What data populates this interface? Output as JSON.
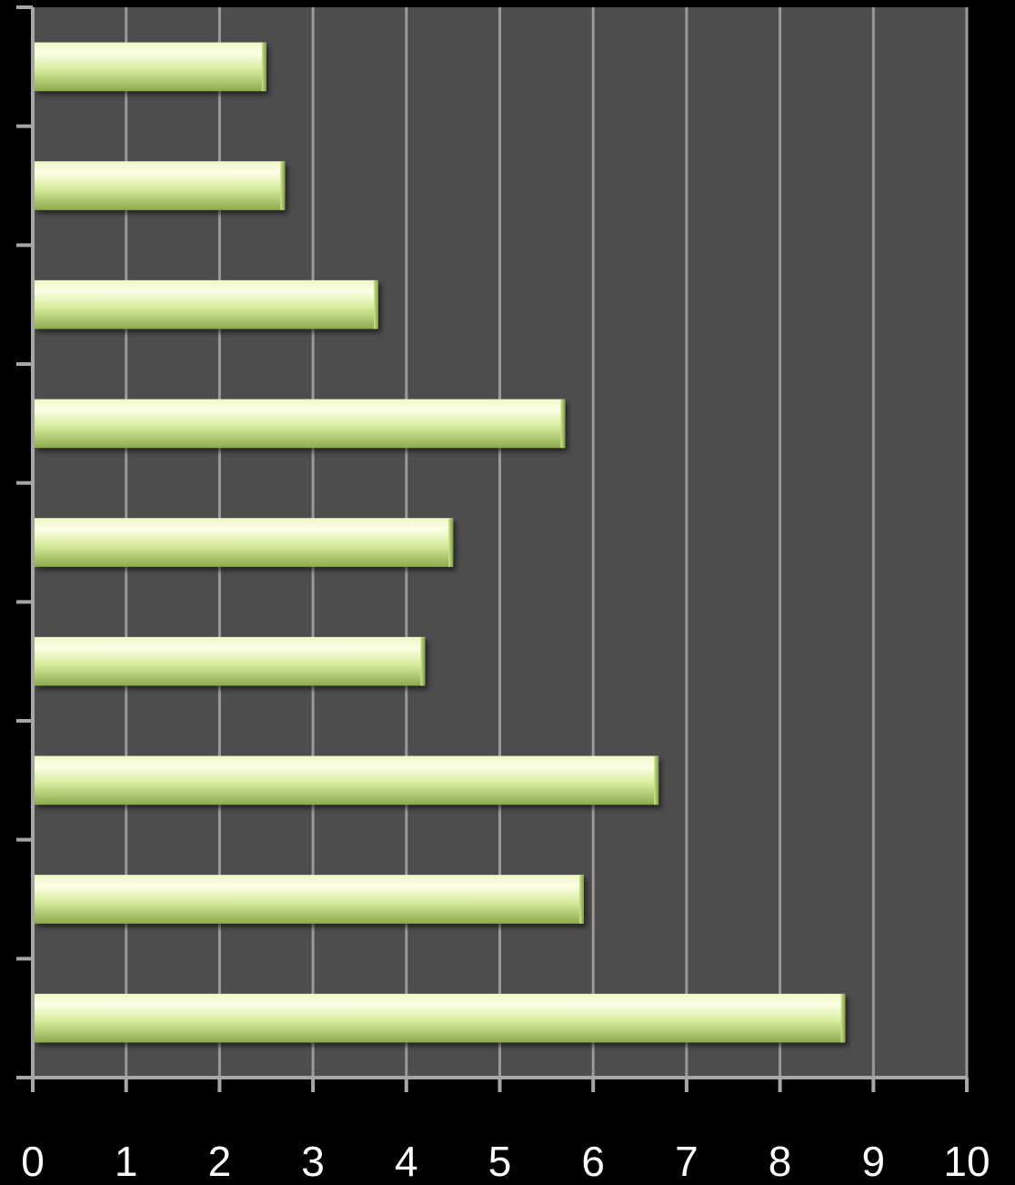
{
  "chart_data": {
    "type": "bar",
    "orientation": "horizontal",
    "title": "",
    "xlabel": "",
    "ylabel": "",
    "xlim": [
      0,
      10
    ],
    "x_ticks": [
      "0",
      "1",
      "2",
      "3",
      "4",
      "5",
      "6",
      "7",
      "8",
      "9",
      "10"
    ],
    "values_top_to_bottom": [
      2.5,
      2.7,
      3.7,
      5.7,
      4.5,
      4.2,
      6.7,
      5.9,
      8.7
    ],
    "grid": "vertical",
    "legend": "none",
    "colors": {
      "background": "#000000",
      "plot_area": "#4d4d4d",
      "gridline": "#9a9a9a",
      "axis": "#a6a6a6",
      "bar_light": "#fbfde0",
      "bar_mid": "#d6eb9e",
      "bar_dark": "#8cab4d"
    }
  }
}
